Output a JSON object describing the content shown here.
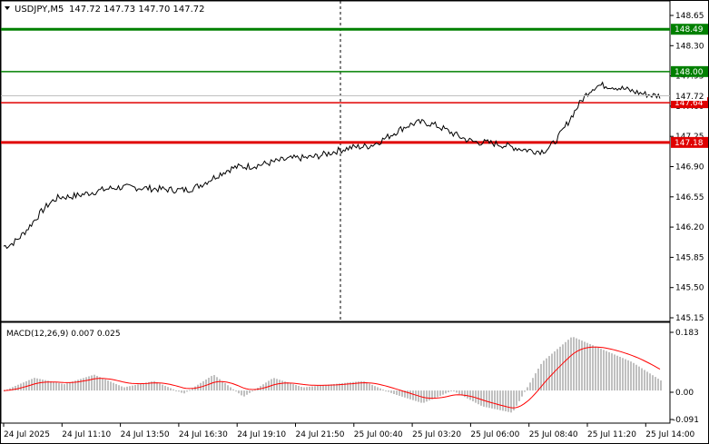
{
  "header": {
    "symbol": "USDJPY,M5",
    "ohlc": "147.72 147.73 147.70 147.72"
  },
  "price_axis": {
    "ticks": [
      "148.65",
      "148.30",
      "147.95",
      "147.60",
      "147.25",
      "146.90",
      "146.55",
      "146.20",
      "145.85",
      "145.50",
      "145.15"
    ]
  },
  "levels": [
    {
      "label": "148.49",
      "color": "#008000",
      "thick": true
    },
    {
      "label": "148.00",
      "color": "#008000",
      "thick": false
    },
    {
      "label": "147.64",
      "color": "#e00000",
      "thick": false
    },
    {
      "label": "147.18",
      "color": "#e00000",
      "thick": true
    }
  ],
  "current_price": {
    "label": "147.72",
    "color": "#000000"
  },
  "macd": {
    "title": "MACD(12,26,9) 0.007 0.025",
    "ticks": [
      "0.183",
      "0.00",
      "-0.091"
    ]
  },
  "time_axis": {
    "labels": [
      "24 Jul 2025",
      "24 Jul 11:10",
      "24 Jul 13:50",
      "24 Jul 16:30",
      "24 Jul 19:10",
      "24 Jul 21:50",
      "25 Jul 00:40",
      "25 Jul 03:20",
      "25 Jul 06:00",
      "25 Jul 08:40",
      "25 Jul 11:20",
      "25 Jul 14:00"
    ]
  },
  "chart_data": {
    "type": "line",
    "title": "USDJPY,M5",
    "x": [
      "24 Jul 2025",
      "24 Jul 11:10",
      "24 Jul 13:50",
      "24 Jul 16:30",
      "24 Jul 19:10",
      "24 Jul 21:50",
      "25 Jul 00:40",
      "25 Jul 03:20",
      "25 Jul 06:00",
      "25 Jul 08:40",
      "25 Jul 11:20",
      "25 Jul 14:00"
    ],
    "series": [
      {
        "values": [
          145.98,
          146.55,
          146.66,
          146.63,
          146.9,
          147.0,
          147.13,
          147.41,
          147.18,
          147.08,
          147.84,
          147.72
        ]
      }
    ],
    "ylim": [
      145.15,
      148.65
    ],
    "ylabel": "",
    "xlabel": "",
    "macd": {
      "title": "MACD(12,26,9)",
      "ylim": [
        -0.091,
        0.183
      ],
      "macd_value": 0.007,
      "signal_value": 0.025
    }
  },
  "colors": {
    "price_line": "#000000",
    "histogram": "#c0c0c0",
    "signal": "#ff0000",
    "support": "#e00000",
    "resistance": "#008000"
  }
}
